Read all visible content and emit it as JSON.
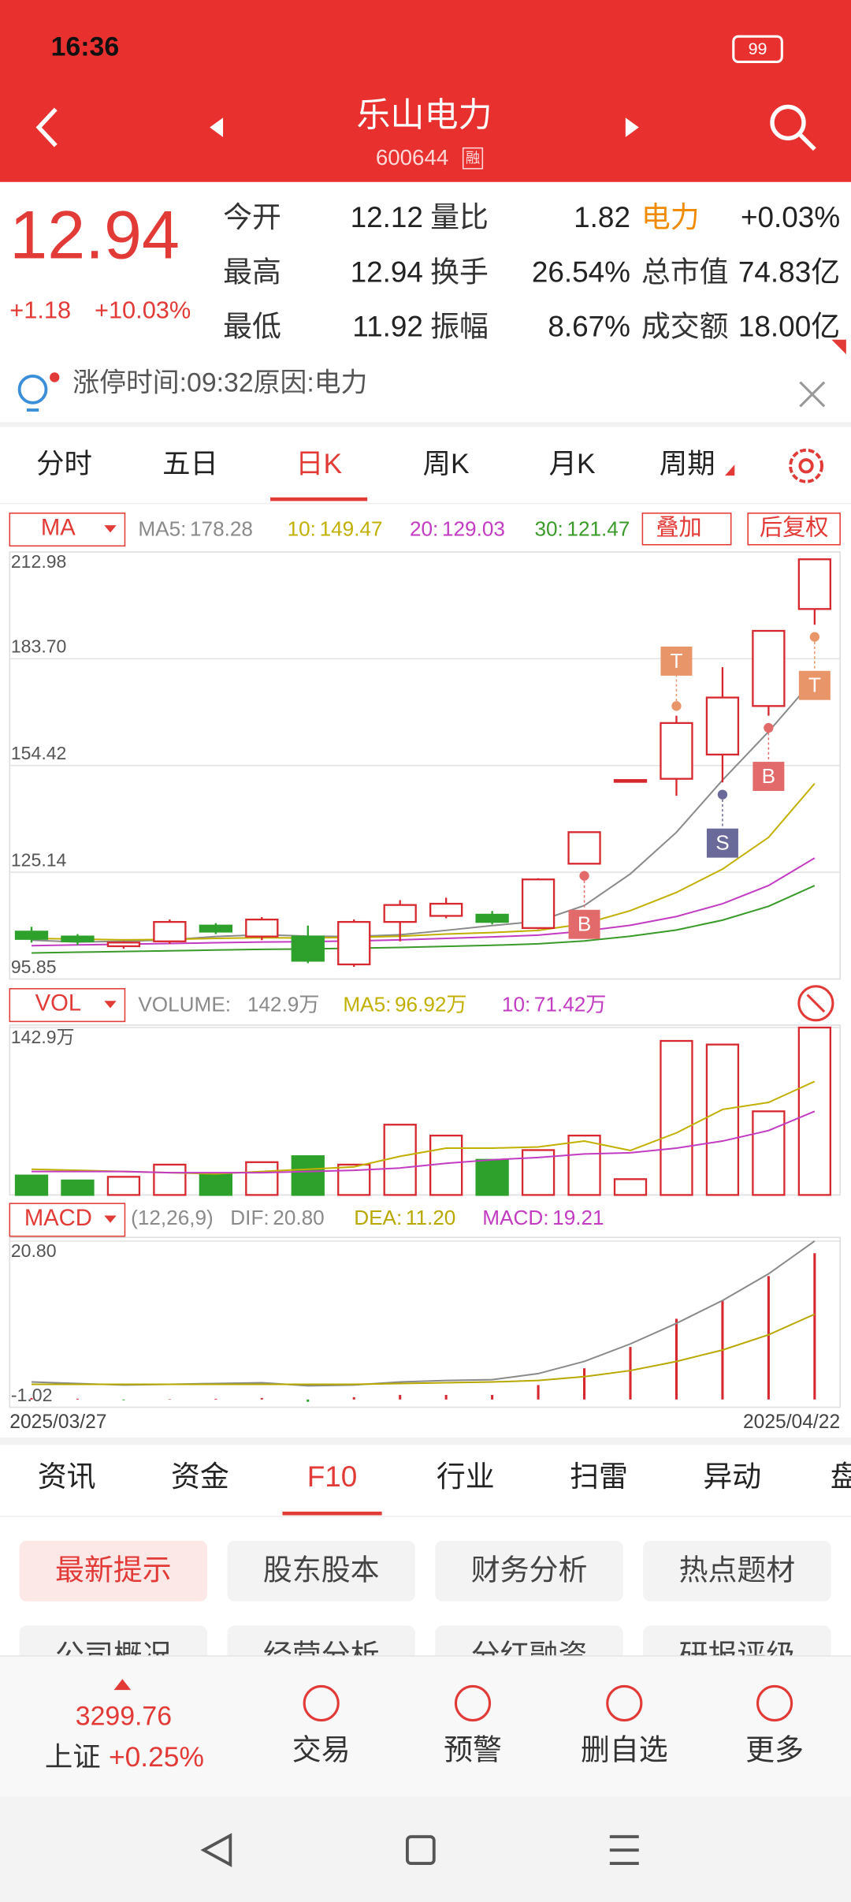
{
  "status_bar": {
    "time": "16:36",
    "battery": "99"
  },
  "header": {
    "title": "乐山电力",
    "code": "600644",
    "badge": "融"
  },
  "quote": {
    "price": "12.94",
    "change": "+1.18",
    "change_pct": "+10.03%",
    "fields": [
      [
        "今开",
        "12.12"
      ],
      [
        "量比",
        "1.82"
      ],
      [
        "电力",
        "+0.03%"
      ],
      [
        "最高",
        "12.94"
      ],
      [
        "换手",
        "26.54%"
      ],
      [
        "总市值",
        "74.83亿"
      ],
      [
        "最低",
        "11.92"
      ],
      [
        "振幅",
        "8.67%"
      ],
      [
        "成交额",
        "18.00亿"
      ]
    ]
  },
  "notice": "涨停时间:09:32原因:电力",
  "tabs": {
    "items": [
      "分时",
      "五日",
      "日K",
      "周K",
      "月K",
      "周期"
    ],
    "active": 2
  },
  "kline": {
    "selector": "MA",
    "overlay": "叠加",
    "adjust": "后复权",
    "ylim": [
      95.85,
      212.98
    ],
    "yticks": [
      95.85,
      125.14,
      154.42,
      {
        "value": 183.7,
        "label": "183.70"
      },
      212.98
    ],
    "open": [
      108.85,
      107.51,
      104.85,
      106.18,
      110.51,
      107.51,
      107.51,
      99.86,
      111.51,
      113.17,
      113.5,
      109.84,
      127.48,
      150.43,
      150.77,
      157.42,
      170.73,
      197.34
    ],
    "high": [
      110.18,
      108.18,
      106.18,
      112.17,
      111.18,
      112.84,
      110.51,
      112.17,
      117.49,
      118.16,
      114.5,
      123.49,
      136.13,
      150.43,
      168.07,
      181.37,
      191.35,
      210.98
    ],
    "low": [
      105.85,
      105.18,
      104.19,
      105.52,
      108.18,
      106.52,
      100.2,
      99.2,
      106.18,
      112.51,
      110.84,
      109.51,
      127.48,
      150.43,
      146.11,
      149.77,
      168.07,
      193.02
    ],
    "close": [
      106.85,
      106.18,
      105.85,
      111.51,
      108.85,
      112.17,
      100.86,
      111.51,
      116.16,
      116.5,
      111.51,
      123.17,
      136.13,
      150.43,
      166.07,
      173.06,
      191.35,
      210.98
    ],
    "up_color": "#d7282f",
    "down_color": "#2ea12c",
    "ma": [
      {
        "name": "MA5:",
        "value": "178.28",
        "color": "#8a8a8a",
        "values": [
          106.5,
          106,
          106.2,
          106.6,
          107.5,
          108,
          107.6,
          107.5,
          108,
          109.2,
          110.5,
          111.7,
          116,
          124.7,
          136.1,
          150.4,
          163.7,
          178.28
        ]
      },
      {
        "name": "10:",
        "value": "149.47",
        "color": "#c2b000",
        "values": [
          107,
          106.8,
          106.6,
          106.7,
          107,
          107.2,
          107.1,
          107.3,
          107.6,
          108.2,
          108.6,
          109.2,
          111,
          114.6,
          119.6,
          126,
          134.7,
          149.47
        ]
      },
      {
        "name": "20:",
        "value": "129.03",
        "color": "#c23cc2",
        "values": [
          105,
          105.2,
          105.4,
          105.6,
          105.8,
          106,
          106.1,
          106.3,
          106.6,
          107,
          107.4,
          107.9,
          109,
          110.6,
          113,
          116.5,
          121.5,
          129.03
        ]
      },
      {
        "name": "30:",
        "value": "121.47",
        "color": "#3a9a2a",
        "values": [
          103,
          103.2,
          103.4,
          103.6,
          103.8,
          104,
          104.1,
          104.3,
          104.5,
          104.8,
          105.1,
          105.5,
          106.3,
          107.6,
          109.3,
          112,
          115.8,
          121.47
        ]
      }
    ],
    "markers": [
      {
        "index": 12,
        "label": "B",
        "position": "below",
        "color": "#e36a6a"
      },
      {
        "index": 14,
        "label": "T",
        "position": "above",
        "color": "#e8956a"
      },
      {
        "index": 15,
        "label": "S",
        "position": "below",
        "color": "#6a6a9a"
      },
      {
        "index": 16,
        "label": "B",
        "position": "below",
        "color": "#e36a6a"
      },
      {
        "index": 17,
        "label": "T",
        "position": "below",
        "color": "#e8956a"
      }
    ]
  },
  "volume": {
    "selector": "VOL",
    "name": "VOLUME:",
    "value": "142.9万",
    "ylim": [
      0,
      142.9
    ],
    "yticks": [
      {
        "value": 142.9,
        "label": "142.9万"
      }
    ],
    "values": [
      16.6,
      12.4,
      15.5,
      25.9,
      18.6,
      28,
      33.1,
      25.9,
      60,
      50.7,
      30,
      38.3,
      50.7,
      13.5,
      131.5,
      128.4,
      71.4,
      142.9
    ],
    "ma": [
      {
        "name": "MA5:",
        "value": "96.92万",
        "color": "#c2b000",
        "values": [
          22,
          21,
          20,
          19,
          18,
          20,
          22,
          24,
          33,
          40,
          40,
          41,
          46,
          38,
          53,
          73,
          79,
          96.92
        ]
      },
      {
        "name": "10:",
        "value": "71.42万",
        "color": "#c23cc2",
        "values": [
          20,
          20,
          20,
          19,
          19,
          19,
          20,
          21,
          23,
          27,
          30,
          32,
          35,
          36,
          40,
          46,
          55,
          71.42
        ]
      }
    ]
  },
  "macd": {
    "selector": "MACD",
    "params": "(12,26,9)",
    "ylim": [
      -1.02,
      20.8
    ],
    "yticks": [
      -1.02,
      {
        "value": 20.8,
        "label": "20.80"
      }
    ],
    "bar_name": "MACD:",
    "bar_value": "19.21",
    "bar_legend_color": "#c23cc2",
    "values": [
      0.2,
      0.1,
      -0.1,
      0.05,
      0.1,
      0.2,
      -0.3,
      0.3,
      0.6,
      0.6,
      0.6,
      1.9,
      4.1,
      6.9,
      10.6,
      13,
      16.2,
      19.21
    ],
    "lines": [
      {
        "name": "DIF:",
        "value": "20.80",
        "color": "#8a8a8a",
        "values": [
          2.3,
          2.1,
          1.9,
          2,
          2.1,
          2.2,
          1.8,
          1.9,
          2.3,
          2.5,
          2.6,
          3.4,
          5,
          7.3,
          10,
          13,
          16.5,
          20.8
        ]
      },
      {
        "name": "DEA:",
        "value": "11.20",
        "color": "#b8a800",
        "values": [
          2,
          2,
          2,
          2,
          2,
          2,
          2,
          2,
          2.1,
          2.2,
          2.3,
          2.5,
          3,
          3.8,
          5,
          6.5,
          8.5,
          11.2
        ]
      }
    ]
  },
  "dates": {
    "start": "2025/03/27",
    "end": "2025/04/22"
  },
  "info_tabs": {
    "items": [
      "资讯",
      "资金",
      "F10",
      "行业",
      "扫雷",
      "异动",
      "盘"
    ],
    "active": 2
  },
  "buttons": [
    "最新提示",
    "股东股本",
    "财务分析",
    "热点题材",
    "公司概况",
    "经营分析",
    "分红融资",
    "研报评级"
  ],
  "bottom_bar": {
    "index_value": "3299.76",
    "index_name": "上证",
    "index_change": "+0.25%",
    "actions": [
      "交易",
      "预警",
      "删自选",
      "更多"
    ]
  }
}
